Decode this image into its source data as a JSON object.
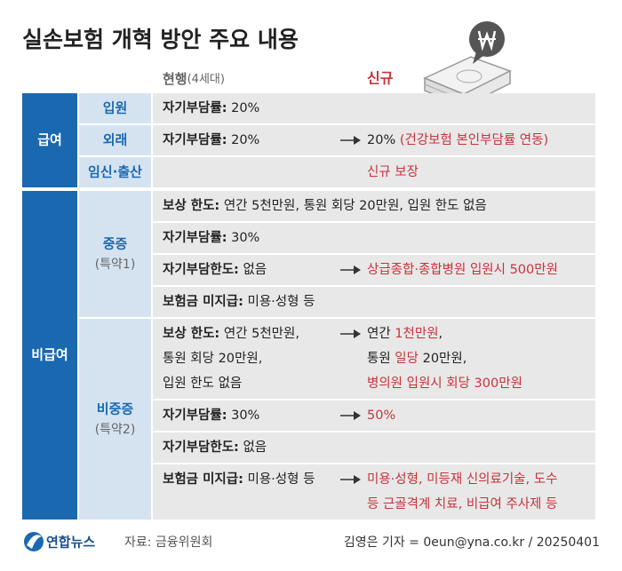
{
  "header": {
    "title": "실손보험 개혁 방안 주요 내용",
    "col_current": "현행",
    "col_current_note": "(4세대)",
    "col_new": "신규"
  },
  "sections": [
    {
      "name": "급여",
      "groups": [
        {
          "name": "입원",
          "rows": [
            {
              "current": [
                [
                  {
                    "style": "bold",
                    "text": "자기부담률:"
                  },
                  {
                    "style": "plain",
                    "text": " 20%"
                  }
                ]
              ]
            }
          ]
        },
        {
          "name": "외래",
          "rows": [
            {
              "current": [
                [
                  {
                    "style": "bold",
                    "text": "자기부담률:"
                  },
                  {
                    "style": "plain",
                    "text": " 20%"
                  }
                ]
              ],
              "arrow": true,
              "new": [
                [
                  {
                    "style": "plain",
                    "text": "20% "
                  },
                  {
                    "style": "red",
                    "text": "(건강보험 본인부담률 연동)"
                  }
                ]
              ]
            }
          ]
        },
        {
          "name": "임신·출산",
          "rows": [
            {
              "current": [],
              "new": [
                [
                  {
                    "style": "red",
                    "text": "신규 보장"
                  }
                ]
              ]
            }
          ]
        }
      ]
    },
    {
      "name": "비급여",
      "groups": [
        {
          "name": "중증",
          "note": "(특약1)",
          "rows": [
            {
              "current": [
                [
                  {
                    "style": "bold",
                    "text": "보상 한도:"
                  },
                  {
                    "style": "plain",
                    "text": " 연간 5천만원, 통원 회당 20만원, 입원 한도 없음"
                  }
                ]
              ]
            },
            {
              "current": [
                [
                  {
                    "style": "bold",
                    "text": "자기부담률:"
                  },
                  {
                    "style": "plain",
                    "text": " 30%"
                  }
                ]
              ]
            },
            {
              "current": [
                [
                  {
                    "style": "bold",
                    "text": "자기부담한도:"
                  },
                  {
                    "style": "plain",
                    "text": " 없음"
                  }
                ]
              ],
              "arrow": true,
              "new": [
                [
                  {
                    "style": "red",
                    "text": "상급종합·종합병원 입원시 500만원"
                  }
                ]
              ]
            },
            {
              "current": [
                [
                  {
                    "style": "bold",
                    "text": "보험금 미지급:"
                  },
                  {
                    "style": "plain",
                    "text": " 미용·성형 등"
                  }
                ]
              ]
            }
          ]
        },
        {
          "name": "비중증",
          "note": "(특약2)",
          "rows": [
            {
              "current": [
                [
                  {
                    "style": "bold",
                    "text": "보상 한도:"
                  },
                  {
                    "style": "plain",
                    "text": " 연간 5천만원,"
                  }
                ],
                [
                  {
                    "style": "plain",
                    "text": "통원 회당 20만원,"
                  }
                ],
                [
                  {
                    "style": "plain",
                    "text": "입원 한도 없음"
                  }
                ]
              ],
              "arrow": true,
              "new": [
                [
                  {
                    "style": "plain",
                    "text": "연간 "
                  },
                  {
                    "style": "red",
                    "text": "1천만원"
                  },
                  {
                    "style": "plain",
                    "text": ","
                  }
                ],
                [
                  {
                    "style": "plain",
                    "text": "통원 "
                  },
                  {
                    "style": "red",
                    "text": "일당"
                  },
                  {
                    "style": "plain",
                    "text": " 20만원,"
                  }
                ],
                [
                  {
                    "style": "red",
                    "text": "병의원 입원시 회당 300만원"
                  }
                ]
              ]
            },
            {
              "current": [
                [
                  {
                    "style": "bold",
                    "text": "자기부담률:"
                  },
                  {
                    "style": "plain",
                    "text": " 30%"
                  }
                ]
              ],
              "arrow": true,
              "new": [
                [
                  {
                    "style": "red",
                    "text": "50%"
                  }
                ]
              ]
            },
            {
              "current": [
                [
                  {
                    "style": "bold",
                    "text": "자기부담한도:"
                  },
                  {
                    "style": "plain",
                    "text": " 없음"
                  }
                ]
              ]
            },
            {
              "current": [
                [
                  {
                    "style": "bold",
                    "text": "보험금 미지급:"
                  },
                  {
                    "style": "plain",
                    "text": " 미용·성형 등"
                  }
                ]
              ],
              "arrow": true,
              "new": [
                [
                  {
                    "style": "red",
                    "text": "미용·성형, 미등재 신의료기술, 도수"
                  }
                ],
                [
                  {
                    "style": "red",
                    "text": "등 근골격계 치료, 비급여 주사제 등"
                  }
                ]
              ]
            }
          ]
        }
      ]
    }
  ],
  "footer": {
    "logo": "연합뉴스",
    "source": "자료: 금융위원회",
    "credit": "김영은 기자 = 0eun@yna.co.kr / 20250401"
  }
}
